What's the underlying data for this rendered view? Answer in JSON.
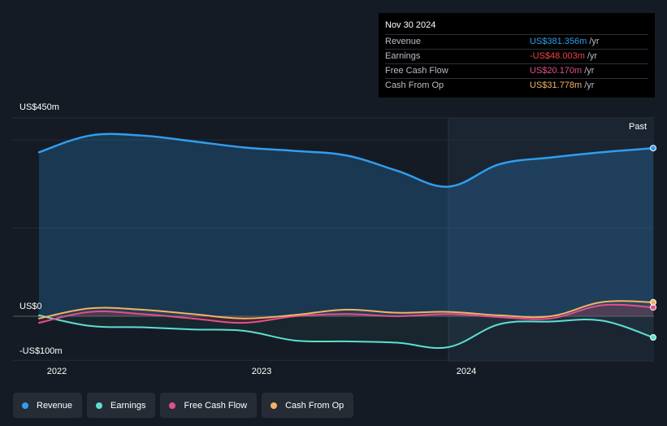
{
  "tooltip": {
    "date": "Nov 30 2024",
    "rows": [
      {
        "label": "Revenue",
        "value": "US$381.356m",
        "unit": "/yr",
        "color": "#2f9ef0"
      },
      {
        "label": "Earnings",
        "value": "-US$48.003m",
        "unit": "/yr",
        "color": "#f0424a"
      },
      {
        "label": "Free Cash Flow",
        "value": "US$20.170m",
        "unit": "/yr",
        "color": "#e24f8d"
      },
      {
        "label": "Cash From Op",
        "value": "US$31.778m",
        "unit": "/yr",
        "color": "#f3b365"
      }
    ]
  },
  "labels": {
    "y_top": "US$450m",
    "y_zero": "US$0",
    "y_bottom": "-US$100m",
    "past": "Past"
  },
  "chart_data": {
    "type": "area",
    "x_ticks": [
      "2022",
      "2023",
      "2024"
    ],
    "ylim": [
      -100,
      450
    ],
    "x": [
      "2021-11-30",
      "2022-02-28",
      "2022-05-31",
      "2022-08-31",
      "2022-11-30",
      "2023-02-28",
      "2023-05-31",
      "2023-08-31",
      "2023-11-30",
      "2024-02-29",
      "2024-05-31",
      "2024-08-31",
      "2024-11-30"
    ],
    "series": [
      {
        "name": "Revenue",
        "color": "#2f9ef0",
        "values": [
          372,
          410,
          410,
          397,
          383,
          375,
          365,
          330,
          294,
          345,
          360,
          372,
          381.356
        ]
      },
      {
        "name": "Earnings",
        "color": "#5ce0d2",
        "values": [
          2,
          -22,
          -25,
          -30,
          -33,
          -55,
          -57,
          -60,
          -70,
          -18,
          -12,
          -10,
          -48.003
        ]
      },
      {
        "name": "Free Cash Flow",
        "color": "#e24f8d",
        "values": [
          -15,
          10,
          5,
          -5,
          -15,
          0,
          5,
          0,
          5,
          -2,
          -5,
          25,
          20.17
        ]
      },
      {
        "name": "Cash From Op",
        "color": "#f3b365",
        "values": [
          -5,
          18,
          15,
          5,
          -5,
          3,
          15,
          8,
          10,
          2,
          0,
          32,
          31.778
        ]
      }
    ]
  },
  "legend": [
    {
      "label": "Revenue",
      "color": "#2f9ef0"
    },
    {
      "label": "Earnings",
      "color": "#5ce0d2"
    },
    {
      "label": "Free Cash Flow",
      "color": "#e24f8d"
    },
    {
      "label": "Cash From Op",
      "color": "#f3b365"
    }
  ]
}
